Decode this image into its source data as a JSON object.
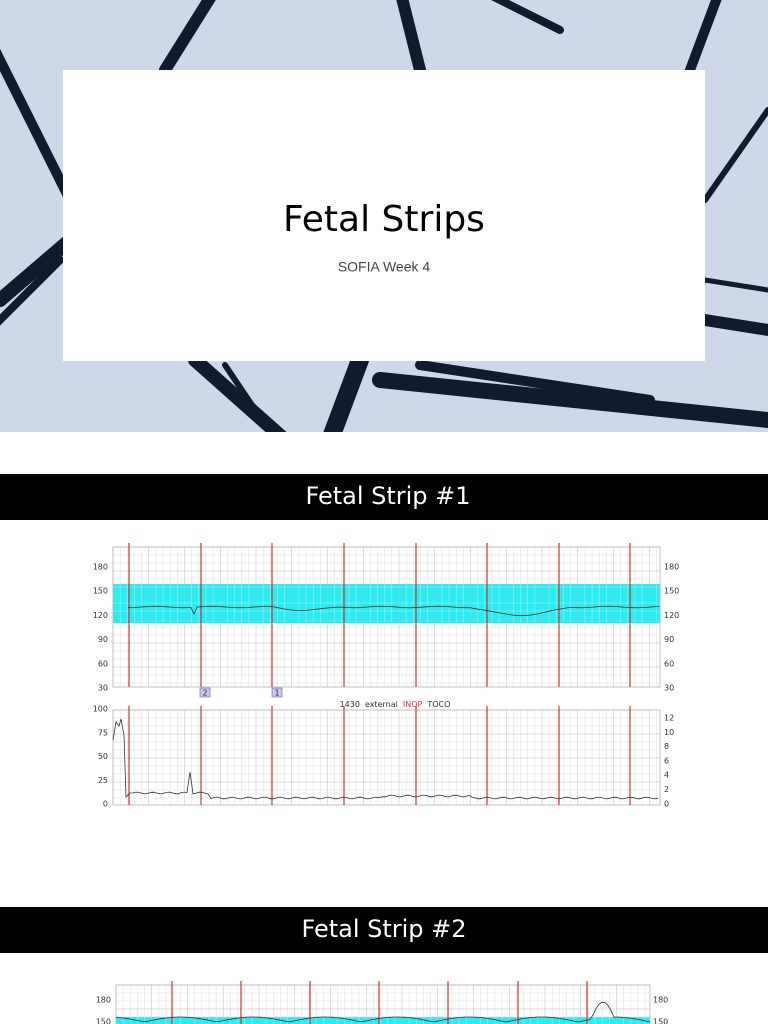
{
  "slides": [
    {
      "title": "Fetal Strips",
      "subtitle": "SOFIA Week 4"
    },
    {
      "title": "Fetal Strip #1",
      "strip": {
        "fhr_left": [
          180,
          150,
          120,
          90,
          60,
          30
        ],
        "fhr_right": [
          180,
          150,
          120,
          90,
          60,
          30
        ],
        "toco_left": [
          100,
          75,
          50,
          25,
          0
        ],
        "toco_right": [
          12,
          10,
          8,
          6,
          4,
          2,
          0
        ],
        "markers": [
          "2",
          "1"
        ],
        "annotation": [
          "1430",
          "external",
          "INOP",
          "TOCO"
        ]
      }
    },
    {
      "title": "Fetal Strip #2",
      "strip": {
        "fhr_left": [
          180,
          150
        ],
        "fhr_right": [
          180,
          150
        ]
      }
    }
  ]
}
